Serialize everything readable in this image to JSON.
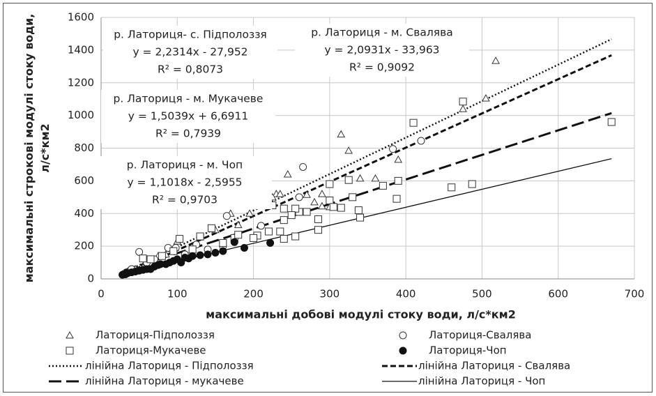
{
  "chart_data": {
    "type": "scatter",
    "xlabel": "максимальні добові модулі стоку води, л/с*км2",
    "ylabel": [
      "максимальні строкові модулі стоку води,",
      "л/с*км2"
    ],
    "xlim": [
      0,
      700
    ],
    "xticks": [
      0,
      100,
      200,
      300,
      400,
      500,
      600,
      700
    ],
    "ylim": [
      0,
      1600
    ],
    "yticks": [
      0,
      200,
      400,
      600,
      800,
      1000,
      1200,
      1400,
      1600
    ],
    "grid": true,
    "series": [
      {
        "name": "Латориця-Підполоззя",
        "marker": "triangle",
        "color": "#333333",
        "x": [
          518,
          505,
          475,
          315,
          325,
          208,
          210,
          245,
          230,
          225,
          235,
          270,
          290,
          290,
          340,
          360,
          390,
          300,
          195,
          180,
          170,
          130,
          100,
          75,
          60,
          45,
          35,
          40,
          55,
          85,
          150,
          220,
          280
        ],
        "values": [
          1335,
          1105,
          1040,
          885,
          785,
          605,
          590,
          640,
          520,
          500,
          520,
          515,
          520,
          445,
          615,
          615,
          730,
          440,
          400,
          330,
          400,
          255,
          230,
          140,
          90,
          60,
          45,
          50,
          70,
          150,
          300,
          480,
          470
        ]
      },
      {
        "name": "Латориця-Свалява",
        "marker": "circle",
        "color": "#333333",
        "x": [
          420,
          383,
          265,
          165,
          50,
          88,
          98,
          125,
          160,
          210,
          260,
          70,
          40,
          140,
          110,
          60
        ],
        "values": [
          845,
          795,
          685,
          385,
          165,
          190,
          190,
          210,
          200,
          325,
          500,
          120,
          60,
          180,
          150,
          100
        ]
      },
      {
        "name": "Латориця-Мукачеве",
        "marker": "square",
        "color": "#333333",
        "x": [
          670,
          475,
          410,
          460,
          487,
          390,
          388,
          370,
          340,
          338,
          330,
          325,
          300,
          300,
          305,
          285,
          285,
          260,
          255,
          250,
          240,
          240,
          235,
          240,
          255,
          270,
          220,
          205,
          200,
          175,
          145,
          130,
          103,
          160,
          120,
          80,
          65,
          55,
          95,
          225,
          315,
          180
        ],
        "values": [
          960,
          1085,
          955,
          560,
          580,
          600,
          490,
          570,
          375,
          420,
          500,
          605,
          580,
          480,
          440,
          365,
          300,
          410,
          430,
          390,
          430,
          360,
          290,
          245,
          260,
          410,
          290,
          265,
          250,
          250,
          310,
          260,
          245,
          220,
          180,
          140,
          120,
          125,
          170,
          450,
          435,
          270
        ]
      },
      {
        "name": "Латориця-Чоп",
        "marker": "dot",
        "color": "#111111",
        "x": [
          222,
          188,
          175,
          160,
          150,
          130,
          120,
          110,
          100,
          90,
          85,
          75,
          70,
          60,
          55,
          50,
          45,
          40,
          35,
          30,
          32,
          28,
          65,
          78,
          95,
          140,
          115,
          105
        ],
        "values": [
          220,
          190,
          225,
          170,
          160,
          145,
          140,
          130,
          120,
          100,
          90,
          85,
          75,
          60,
          55,
          50,
          45,
          40,
          35,
          30,
          28,
          25,
          60,
          90,
          110,
          150,
          125,
          100
        ]
      }
    ],
    "trendlines": [
      {
        "name": "лінійна Латориця - Підполоззя",
        "style": "dotted",
        "slope": 2.2314,
        "intercept": -27.952,
        "xrange": [
          30,
          670
        ],
        "label": "р. Латориця- с. Підполоззя",
        "equation": "y = 2,2314x - 27,952",
        "r2": "R² = 0,8073"
      },
      {
        "name": "лінійна Латориця - Свалява",
        "style": "dashed",
        "slope": 2.0931,
        "intercept": -33.963,
        "xrange": [
          35,
          670
        ],
        "label": "р. Латориця - м. Свалява",
        "equation": "y = 2,0931x - 33,963",
        "r2": "R² = 0,9092"
      },
      {
        "name": "лінійна Латориця - мукачеве",
        "style": "long-dash",
        "slope": 1.5039,
        "intercept": 6.6911,
        "xrange": [
          30,
          670
        ],
        "label": "р. Латориця - м. Мукачеве",
        "equation": "y = 1,5039x + 6,6911",
        "r2": "R² = 0,7939"
      },
      {
        "name": "лінійна Латориця - Чоп",
        "style": "solid",
        "slope": 1.1018,
        "intercept": -2.5955,
        "xrange": [
          28,
          670
        ],
        "label": "р. Латориця - м. Чоп",
        "equation": "y = 1,1018x - 2,5955",
        "r2": "R² = 0,9703"
      }
    ]
  }
}
